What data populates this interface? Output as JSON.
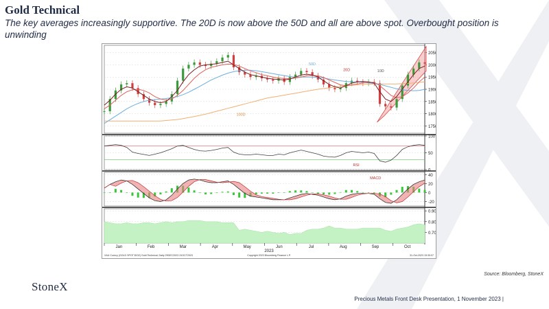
{
  "slide": {
    "title": "Gold Technical",
    "subtitle": "The key averages increasingly supportive.  The 20D is now above the 50D and all are above spot.  Overbought position is unwinding",
    "source": "Source: Bloomberg, StoneX",
    "logo": "StoneX",
    "footer": "Precious Metals Front Desk Presentation, 1 November 2023 |"
  },
  "colors": {
    "navy": "#1f2a44",
    "ma10": "#7a1f1f",
    "ma20": "#e0605a",
    "ma50": "#6aaee0",
    "ma100": "#f0b070",
    "candle_up": "#3c9a3c",
    "candle_down": "#d04040",
    "channel": "#f4a6a6",
    "volume_fill": "#c4f2c4",
    "rsi_line": "#404040",
    "macd_hist": "#39c639"
  },
  "chart_data": [
    {
      "type": "line",
      "panel": "price",
      "y_ticks": [
        "2050",
        "2000",
        "1950",
        "1900",
        "1850",
        "1800",
        "1750"
      ],
      "ylim": [
        1720,
        2080
      ],
      "labels": {
        "ma10": "10D",
        "ma20": "20D",
        "ma50": "50D",
        "ma100": "100D"
      },
      "series": [
        {
          "name": "10D",
          "values": [
            1835,
            1855,
            1880,
            1900,
            1910,
            1905,
            1890,
            1875,
            1860,
            1850,
            1845,
            1850,
            1870,
            1895,
            1930,
            1960,
            1980,
            1995,
            2000,
            2002,
            2005,
            2010,
            2015,
            2000,
            1985,
            1970,
            1960,
            1955,
            1950,
            1945,
            1942,
            1940,
            1938,
            1942,
            1950,
            1958,
            1962,
            1958,
            1950,
            1935,
            1920,
            1910,
            1905,
            1915,
            1925,
            1930,
            1932,
            1930,
            1925,
            1890,
            1860,
            1850,
            1870,
            1900,
            1930,
            1960,
            1985,
            1995
          ]
        },
        {
          "name": "20D",
          "values": [
            1820,
            1835,
            1855,
            1875,
            1890,
            1898,
            1900,
            1895,
            1885,
            1870,
            1860,
            1855,
            1860,
            1875,
            1895,
            1920,
            1945,
            1965,
            1980,
            1990,
            1995,
            2000,
            2003,
            2002,
            1995,
            1985,
            1975,
            1968,
            1960,
            1955,
            1950,
            1946,
            1944,
            1944,
            1946,
            1950,
            1955,
            1957,
            1955,
            1948,
            1938,
            1928,
            1918,
            1915,
            1918,
            1922,
            1926,
            1928,
            1928,
            1915,
            1895,
            1875,
            1865,
            1870,
            1885,
            1905,
            1930,
            1950
          ]
        },
        {
          "name": "50D",
          "values": [
            1760,
            1775,
            1790,
            1805,
            1820,
            1832,
            1842,
            1850,
            1855,
            1858,
            1860,
            1862,
            1865,
            1870,
            1878,
            1888,
            1900,
            1912,
            1925,
            1938,
            1948,
            1958,
            1966,
            1972,
            1976,
            1978,
            1978,
            1976,
            1972,
            1968,
            1964,
            1960,
            1956,
            1952,
            1950,
            1950,
            1950,
            1950,
            1948,
            1946,
            1942,
            1938,
            1935,
            1932,
            1930,
            1930,
            1928,
            1926,
            1924,
            1920,
            1914,
            1908,
            1902,
            1898,
            1895,
            1894,
            1895,
            1900
          ]
        },
        {
          "name": "100D",
          "values": [
            1770,
            1770,
            1770,
            1770,
            1770,
            1770,
            1770,
            1770,
            1770,
            1770,
            1770,
            1772,
            1774,
            1776,
            1780,
            1784,
            1788,
            1793,
            1798,
            1804,
            1810,
            1816,
            1822,
            1828,
            1834,
            1840,
            1846,
            1852,
            1858,
            1864,
            1868,
            1872,
            1876,
            1880,
            1884,
            1888,
            1892,
            1896,
            1900,
            1903,
            1906,
            1909,
            1912,
            1914,
            1916,
            1918,
            1920,
            1921,
            1922,
            1922,
            1922,
            1922,
            1922,
            1923,
            1924,
            1926,
            1928,
            1930
          ]
        },
        {
          "name": "spot",
          "values": [
            1810,
            1860,
            1895,
            1920,
            1925,
            1905,
            1880,
            1860,
            1845,
            1835,
            1840,
            1850,
            1880,
            1935,
            1985,
            2000,
            2010,
            2000,
            1995,
            2005,
            2015,
            2030,
            2040,
            1990,
            1970,
            1960,
            1950,
            1955,
            1945,
            1940,
            1935,
            1945,
            1930,
            1950,
            1960,
            1975,
            1970,
            1955,
            1940,
            1920,
            1905,
            1900,
            1905,
            1925,
            1935,
            1930,
            1925,
            1930,
            1925,
            1840,
            1830,
            1825,
            1860,
            1915,
            1960,
            1985,
            2010,
            2005
          ]
        }
      ]
    },
    {
      "type": "line",
      "panel": "rsi",
      "label": "RSI",
      "y_ticks": [
        "100",
        "50",
        "0"
      ],
      "ylim": [
        0,
        100
      ],
      "values": [
        70,
        72,
        74,
        72,
        66,
        52,
        48,
        45,
        42,
        46,
        50,
        56,
        62,
        70,
        72,
        66,
        60,
        56,
        55,
        57,
        60,
        64,
        66,
        52,
        46,
        44,
        44,
        46,
        44,
        42,
        42,
        46,
        44,
        50,
        54,
        58,
        54,
        50,
        46,
        40,
        38,
        37,
        42,
        50,
        54,
        52,
        50,
        52,
        48,
        26,
        22,
        28,
        42,
        60,
        68,
        72,
        74,
        72
      ]
    },
    {
      "type": "line",
      "panel": "macd",
      "label": "MACD",
      "y_ticks": [
        "40",
        "20",
        "0",
        "-20"
      ],
      "ylim": [
        -30,
        45
      ],
      "values": [
        10,
        18,
        24,
        28,
        26,
        18,
        8,
        -2,
        -12,
        -18,
        -20,
        -16,
        -6,
        8,
        20,
        28,
        30,
        28,
        24,
        22,
        22,
        24,
        26,
        18,
        8,
        -2,
        -8,
        -10,
        -12,
        -14,
        -16,
        -16,
        -16,
        -12,
        -8,
        -4,
        -2,
        -4,
        -6,
        -10,
        -14,
        -16,
        -14,
        -8,
        -4,
        -2,
        -2,
        -2,
        -4,
        -14,
        -22,
        -24,
        -16,
        -4,
        8,
        18,
        24,
        28
      ]
    },
    {
      "type": "area",
      "panel": "volatility",
      "y_ticks": [
        "0.90",
        "0.80",
        "0.70"
      ],
      "ylim": [
        0.6,
        0.92
      ],
      "values": [
        0.8,
        0.79,
        0.78,
        0.78,
        0.79,
        0.78,
        0.78,
        0.79,
        0.79,
        0.78,
        0.79,
        0.8,
        0.79,
        0.8,
        0.8,
        0.81,
        0.81,
        0.81,
        0.8,
        0.8,
        0.8,
        0.79,
        0.79,
        0.79,
        0.72,
        0.73,
        0.72,
        0.71,
        0.7,
        0.71,
        0.7,
        0.69,
        0.7,
        0.68,
        0.69,
        0.69,
        0.72,
        0.73,
        0.73,
        0.74,
        0.76,
        0.74,
        0.74,
        0.73,
        0.73,
        0.73,
        0.74,
        0.74,
        0.74,
        0.74,
        0.72,
        0.71,
        0.73,
        0.74,
        0.75,
        0.77,
        0.78,
        0.77
      ]
    },
    {
      "type": "axis",
      "months": [
        "Jan",
        "Feb",
        "Mar",
        "Apr",
        "May",
        "Jun",
        "Jul",
        "Aug",
        "Sep",
        "Oct"
      ],
      "year": "2023",
      "footer_left": "XAU Curncy (GOLD SPOT $/OZ) Gold Technical, Daily 29DEC2022-31OCT2023",
      "footer_mid": "Copyright 2023 Bloomberg Finance L.P.",
      "footer_right": "31-Oct-2023 15:30:07"
    }
  ]
}
